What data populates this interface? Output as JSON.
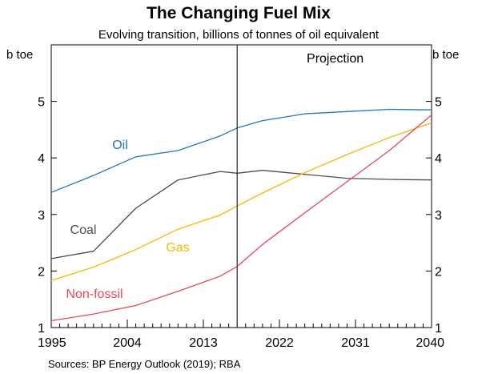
{
  "chart_data": {
    "type": "line",
    "title": "The Changing Fuel Mix",
    "subtitle": "Evolving transition, billions of tonnes of oil equivalent",
    "y_unit_left": "b toe",
    "y_unit_right": "b toe",
    "xlim": [
      1995,
      2040
    ],
    "ylim": [
      1,
      6
    ],
    "x_ticks": [
      1995,
      2004,
      2013,
      2022,
      2031,
      2040
    ],
    "y_ticks": [
      1,
      2,
      3,
      4,
      5
    ],
    "grid": false,
    "projection_start": 2017,
    "projection_label": "Projection",
    "source": "Sources:  BP Energy Outlook (2019); RBA",
    "series": [
      {
        "name": "Oil",
        "color": "#1f78c1",
        "x": [
          1995,
          2000,
          2005,
          2010,
          2015,
          2017,
          2020,
          2025,
          2030,
          2035,
          2040
        ],
        "y": [
          3.39,
          3.69,
          4.02,
          4.13,
          4.39,
          4.53,
          4.66,
          4.78,
          4.82,
          4.86,
          4.85
        ]
      },
      {
        "name": "Coal",
        "color": "#4d4d4d",
        "x": [
          1995,
          2000,
          2005,
          2010,
          2015,
          2017,
          2020,
          2025,
          2030,
          2035,
          2040
        ],
        "y": [
          2.22,
          2.35,
          3.11,
          3.61,
          3.76,
          3.73,
          3.78,
          3.71,
          3.64,
          3.62,
          3.61
        ]
      },
      {
        "name": "Gas",
        "color": "#f5b800",
        "x": [
          1995,
          2000,
          2005,
          2010,
          2015,
          2017,
          2020,
          2025,
          2030,
          2035,
          2040
        ],
        "y": [
          1.83,
          2.07,
          2.38,
          2.74,
          2.99,
          3.15,
          3.38,
          3.74,
          4.06,
          4.36,
          4.62
        ]
      },
      {
        "name": "Non-fossil",
        "color": "#e8485f",
        "x": [
          1995,
          2000,
          2005,
          2010,
          2015,
          2017,
          2020,
          2025,
          2030,
          2035,
          2040
        ],
        "y": [
          1.12,
          1.24,
          1.39,
          1.64,
          1.91,
          2.08,
          2.47,
          3.03,
          3.58,
          4.13,
          4.76
        ]
      }
    ]
  }
}
